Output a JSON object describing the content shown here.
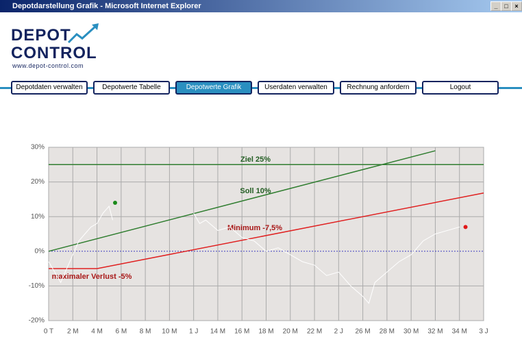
{
  "window": {
    "title": "Depotdarstellung Grafik - Microsoft Internet Explorer"
  },
  "logo": {
    "line1": "DEPOT",
    "line2": "CONTROL",
    "url": "www.depot-control.com"
  },
  "nav": {
    "items": [
      "Depotdaten verwalten",
      "Depotwerte Tabelle",
      "Depotwerte Grafik",
      "Userdaten verwalten",
      "Rechnung anfordern",
      "Logout"
    ],
    "active": 2
  },
  "chart_data": {
    "type": "line",
    "xlim": [
      0,
      36
    ],
    "ylim": [
      -20,
      30
    ],
    "grid": true,
    "xticks": [
      {
        "value": 0,
        "label": "0 T"
      },
      {
        "value": 2,
        "label": "2 M"
      },
      {
        "value": 4,
        "label": "4 M"
      },
      {
        "value": 6,
        "label": "6 M"
      },
      {
        "value": 8,
        "label": "8 M"
      },
      {
        "value": 10,
        "label": "10 M"
      },
      {
        "value": 12,
        "label": "1 J"
      },
      {
        "value": 14,
        "label": "14 M"
      },
      {
        "value": 16,
        "label": "16 M"
      },
      {
        "value": 18,
        "label": "18 M"
      },
      {
        "value": 20,
        "label": "20 M"
      },
      {
        "value": 22,
        "label": "22 M"
      },
      {
        "value": 24,
        "label": "2 J"
      },
      {
        "value": 26,
        "label": "26 M"
      },
      {
        "value": 28,
        "label": "28 M"
      },
      {
        "value": 30,
        "label": "30 M"
      },
      {
        "value": 32,
        "label": "32 M"
      },
      {
        "value": 34,
        "label": "34 M"
      },
      {
        "value": 36,
        "label": "3 J"
      }
    ],
    "yticks": [
      {
        "value": -20,
        "label": "-20%"
      },
      {
        "value": -10,
        "label": "-10%"
      },
      {
        "value": 0,
        "label": "0%"
      },
      {
        "value": 10,
        "label": "10%"
      },
      {
        "value": 20,
        "label": "20%"
      },
      {
        "value": 30,
        "label": "30%"
      }
    ],
    "series": [
      {
        "name": "Ziel 25%",
        "color": "#2f7d2f",
        "x": [
          0,
          36
        ],
        "values": [
          25,
          25
        ]
      },
      {
        "name": "Soll 10%",
        "color": "#2f7d2f",
        "x": [
          0,
          32
        ],
        "values": [
          0,
          29
        ]
      },
      {
        "name": "Minimum -7,5%",
        "color": "#e02020",
        "x": [
          0,
          36
        ],
        "values": [
          null,
          16.8
        ]
      },
      {
        "name": "maximaler Verlust -5%",
        "color": "#e02020",
        "x": [
          0,
          4
        ],
        "values": [
          -5,
          -5
        ]
      },
      {
        "color": "#ffffff",
        "x": [
          0,
          0.5,
          1,
          1.5,
          2,
          2.5,
          3,
          3.5,
          4,
          4.5,
          5,
          5.3,
          8,
          12,
          12.5,
          13,
          14,
          15,
          16,
          17,
          18,
          19,
          20,
          21,
          22,
          23,
          24,
          25,
          26,
          26.5,
          27,
          28,
          29,
          30,
          31,
          32,
          33,
          34
        ],
        "values": [
          -3,
          -6,
          -9,
          -5,
          -1,
          3,
          5,
          7,
          8,
          11,
          13,
          9,
          null,
          11,
          8,
          9,
          6,
          7,
          4,
          3,
          0,
          1,
          -1,
          -3,
          -4,
          -7,
          -6,
          -10,
          -13,
          -15,
          -9,
          -6,
          -3,
          -1,
          3,
          5,
          6,
          7
        ]
      }
    ],
    "points": [
      {
        "x": 5.5,
        "value": 14,
        "color": "#1a8a1a"
      },
      {
        "x": 34.5,
        "value": 7,
        "color": "#e01818"
      }
    ]
  }
}
